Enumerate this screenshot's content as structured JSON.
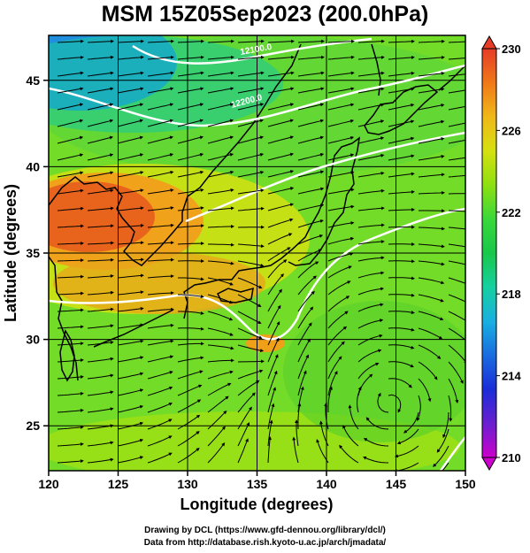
{
  "title": "MSM 15Z05Sep2023 (200.0hPa)",
  "footer": {
    "line1": "Drawing by DCL (https://www.gfd-dennou.org/library/dcl/)",
    "line2": "Data from http://database.rish.kyoto-u.ac.jp/arch/jmadata/"
  },
  "chart_data": {
    "type": "heatmap",
    "title": "MSM 15Z05Sep2023 (200.0hPa)",
    "xlabel": "Longitude (degrees)",
    "ylabel": "Latitude  (degrees)",
    "xlim": [
      120,
      150
    ],
    "ylim": [
      22.4,
      47.6
    ],
    "x_ticks": [
      "120",
      "125",
      "130",
      "135",
      "140",
      "145",
      "150"
    ],
    "y_ticks": [
      "25",
      "30",
      "35",
      "40",
      "45"
    ],
    "grid": true,
    "colorbar": {
      "min": 210,
      "max": 230,
      "tick_labels": [
        "230",
        "226",
        "222",
        "218",
        "214",
        "210"
      ],
      "colors": [
        "#cc00cc",
        "#6a1fd0",
        "#1a2dd8",
        "#1a6ce0",
        "#18b0e0",
        "#16d0a0",
        "#18c84a",
        "#3ad83a",
        "#8ee010",
        "#d6e010",
        "#f0b818",
        "#f07818",
        "#e63c28"
      ],
      "placement": "right"
    },
    "contour_labels": [
      "12100.0",
      "12200.0"
    ],
    "field_description": {
      "cold_core": {
        "lon": 122,
        "lat": 46.5,
        "value": 216
      },
      "warm_core": {
        "lon": 124,
        "lat": 37.5,
        "value": 227.5
      },
      "warm_patch": {
        "lon": 135.8,
        "lat": 30.5,
        "value": 226
      }
    },
    "stream_field": "westerly jet in the north with an anticyclonic circulation centered near 145E, 27N"
  }
}
